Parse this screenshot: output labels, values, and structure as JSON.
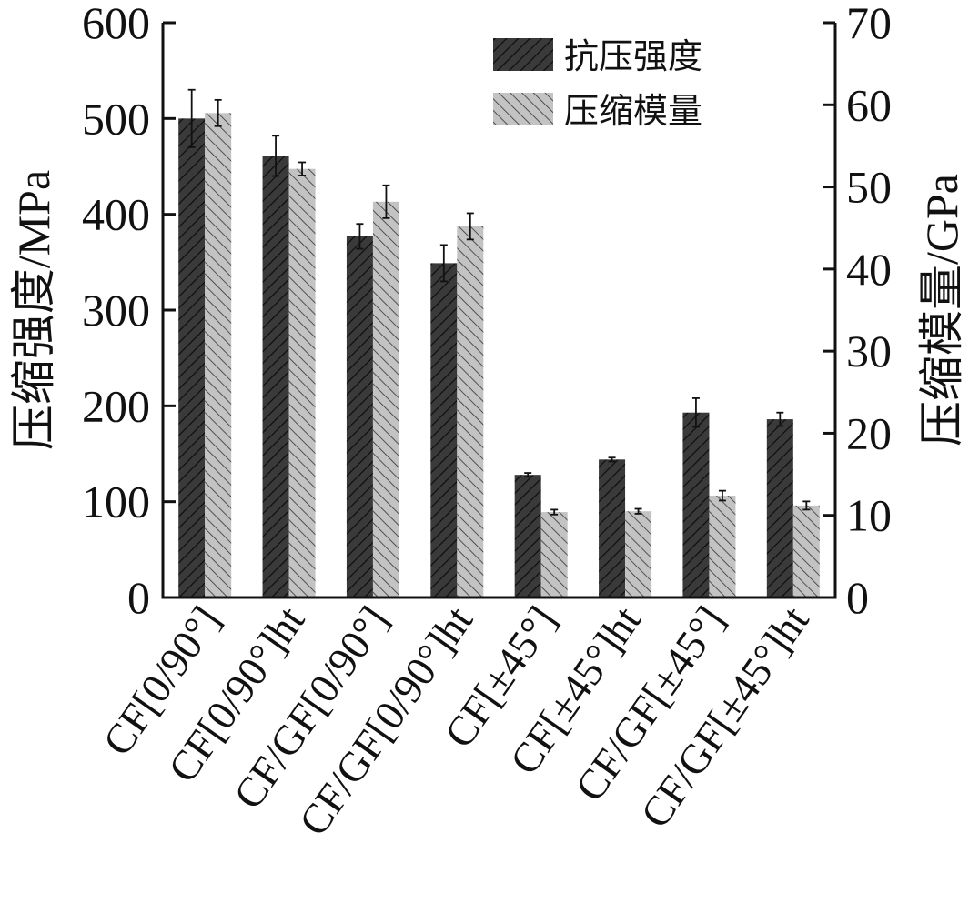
{
  "chart_data": {
    "type": "bar",
    "categories": [
      "CF[0/90°]",
      "CF[0/90°]ht",
      "CF/GF[0/90°]",
      "CF/GF[0/90°]ht",
      "CF[±45°]",
      "CF[±45°]ht",
      "CF/GF[±45°]",
      "CF/GF[±45°]ht"
    ],
    "series": [
      {
        "name": "抗压强度",
        "axis": "left",
        "values": [
          500,
          461,
          377,
          349,
          128,
          144,
          193,
          186
        ],
        "errors": [
          30,
          21,
          13,
          19,
          2,
          2,
          15,
          7
        ],
        "color": "#3a3a3a",
        "hatch_color": "#0d0d0d"
      },
      {
        "name": "压缩模量",
        "axis": "right",
        "values": [
          59.0,
          52.2,
          48.2,
          45.2,
          10.4,
          10.5,
          12.4,
          11.2
        ],
        "errors": [
          1.6,
          0.8,
          2.0,
          1.6,
          0.3,
          0.3,
          0.6,
          0.5
        ],
        "color": "#c3c3c3",
        "hatch_color": "#333333"
      }
    ],
    "ylabel_left": "压缩强度/MPa",
    "ylabel_right": "压缩模量/GPa",
    "ylim_left": [
      0,
      600
    ],
    "ylim_right": [
      0,
      70
    ],
    "yticks_left": [
      0,
      100,
      200,
      300,
      400,
      500,
      600
    ],
    "yticks_right": [
      0,
      10,
      20,
      30,
      40,
      50,
      60,
      70
    ],
    "legend_position": "top-right",
    "grid": false
  }
}
